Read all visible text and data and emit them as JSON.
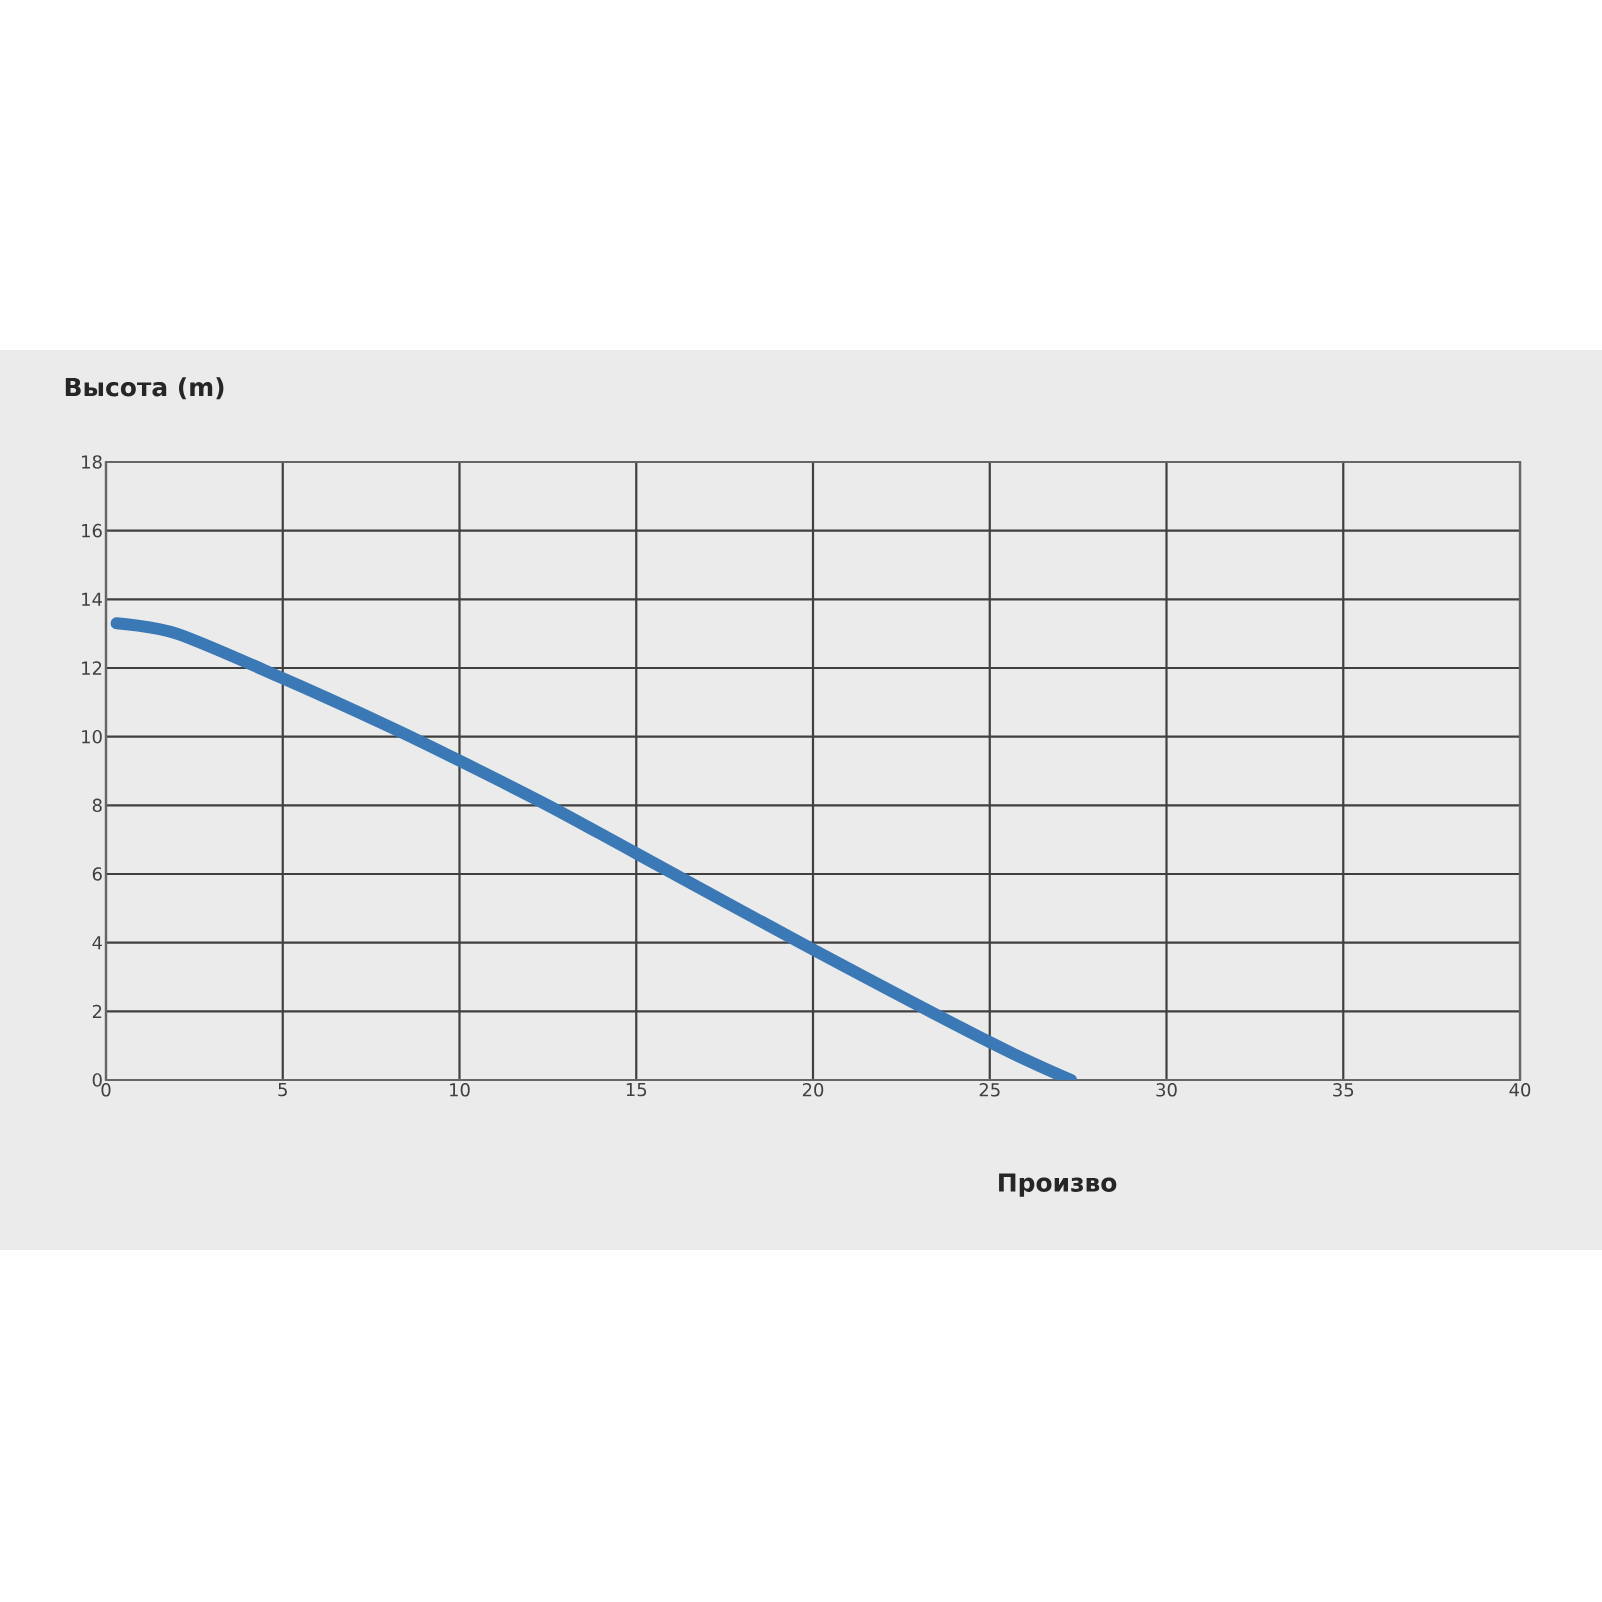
{
  "chart_data": {
    "type": "line",
    "xlabel": "Произво",
    "ylabel": "Высота (m)",
    "x": [
      0.3,
      2,
      5,
      8,
      10,
      12.5,
      15,
      20,
      25,
      27.3
    ],
    "series": [
      {
        "color": "#3b78b6",
        "values": [
          13.3,
          13,
          11.7,
          10.3,
          9.3,
          8,
          6.6,
          3.8,
          1.1,
          0
        ]
      }
    ],
    "xlim": [
      0,
      40
    ],
    "ylim": [
      0,
      18
    ],
    "xticks": [
      0,
      5,
      10,
      15,
      20,
      25,
      30,
      35,
      40
    ],
    "yticks": [
      0,
      2,
      4,
      6,
      8,
      10,
      12,
      14,
      16,
      18
    ],
    "grid": true,
    "marker": "none",
    "line_style": "solid"
  }
}
